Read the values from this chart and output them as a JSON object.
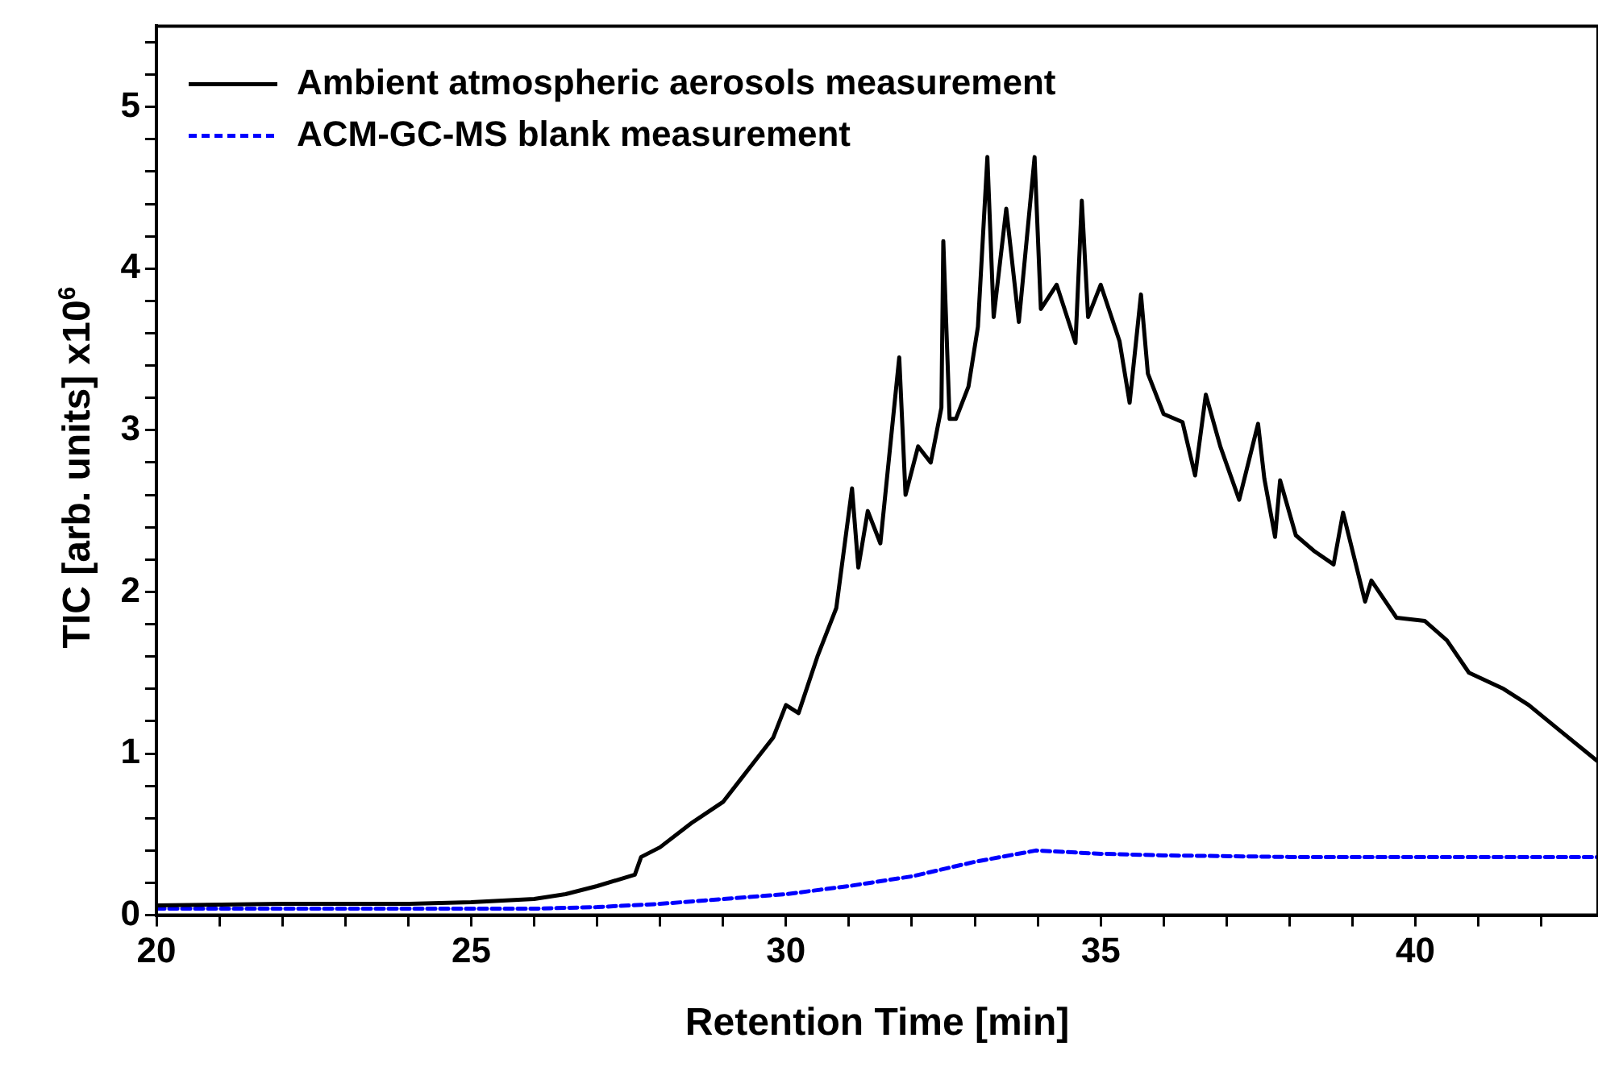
{
  "chart_data": {
    "type": "line",
    "xlabel": "Retention Time [min]",
    "ylabel": "TIC [arb. units] x10$^{6}$",
    "xlim": [
      20,
      42.9
    ],
    "ylim": [
      0,
      5.5
    ],
    "xticks": [
      20,
      {
        "value": 21,
        "label": null
      },
      {
        "value": 22,
        "label": null
      },
      {
        "value": 23,
        "label": null
      },
      {
        "value": 24,
        "label": null
      },
      25,
      {
        "value": 26,
        "label": null
      },
      {
        "value": 27,
        "label": null
      },
      {
        "value": 28,
        "label": null
      },
      {
        "value": 29,
        "label": null
      },
      30,
      {
        "value": 31,
        "label": null
      },
      {
        "value": 32,
        "label": null
      },
      {
        "value": 33,
        "label": null
      },
      {
        "value": 34,
        "label": null
      },
      35,
      {
        "value": 36,
        "label": null
      },
      {
        "value": 37,
        "label": null
      },
      {
        "value": 38,
        "label": null
      },
      {
        "value": 39,
        "label": null
      },
      40,
      {
        "value": 41,
        "label": null
      },
      {
        "value": 42,
        "label": null
      }
    ],
    "yticks": [
      0,
      {
        "value": 0.2,
        "label": null
      },
      {
        "value": 0.4,
        "label": null
      },
      {
        "value": 0.6,
        "label": null
      },
      {
        "value": 0.8,
        "label": null
      },
      1,
      {
        "value": 1.2,
        "label": null
      },
      {
        "value": 1.4,
        "label": null
      },
      {
        "value": 1.6,
        "label": null
      },
      {
        "value": 1.8,
        "label": null
      },
      2,
      {
        "value": 2.2,
        "label": null
      },
      {
        "value": 2.4,
        "label": null
      },
      {
        "value": 2.6,
        "label": null
      },
      {
        "value": 2.8,
        "label": null
      },
      3,
      {
        "value": 3.2,
        "label": null
      },
      {
        "value": 3.4,
        "label": null
      },
      {
        "value": 3.6,
        "label": null
      },
      {
        "value": 3.8,
        "label": null
      },
      4,
      {
        "value": 4.2,
        "label": null
      },
      {
        "value": 4.4,
        "label": null
      },
      {
        "value": 4.6,
        "label": null
      },
      {
        "value": 4.8,
        "label": null
      },
      5,
      {
        "value": 5.2,
        "label": null
      },
      {
        "value": 5.4,
        "label": null
      }
    ],
    "legend": "top left",
    "marker": "none",
    "series": [
      {
        "name": "Ambient atmospheric aerosols measurement",
        "color": "#000000",
        "line_style": "solid",
        "x": [
          20,
          22,
          24,
          25,
          26,
          26.5,
          27,
          27.6,
          27.7,
          28,
          28.5,
          29,
          29.3,
          29.5,
          29.8,
          30,
          30.2,
          30.5,
          30.8,
          31.05,
          31.15,
          31.3,
          31.5,
          31.8,
          31.9,
          32.1,
          32.3,
          32.47,
          32.5,
          32.6,
          32.7,
          32.9,
          33.05,
          33.2,
          33.3,
          33.5,
          33.7,
          33.95,
          34.05,
          34.3,
          34.6,
          34.7,
          34.8,
          35,
          35.3,
          35.46,
          35.64,
          35.75,
          36,
          36.3,
          36.5,
          36.67,
          36.9,
          37.2,
          37.5,
          37.6,
          37.77,
          37.85,
          38.1,
          38.4,
          38.7,
          38.85,
          39.2,
          39.3,
          39.7,
          40.15,
          40.5,
          40.85,
          41.4,
          41.8,
          42.3,
          42.9
        ],
        "values": [
          0.06,
          0.07,
          0.07,
          0.08,
          0.1,
          0.13,
          0.18,
          0.25,
          0.36,
          0.42,
          0.57,
          0.7,
          0.85,
          0.95,
          1.1,
          1.3,
          1.25,
          1.6,
          1.9,
          2.64,
          2.15,
          2.5,
          2.3,
          3.45,
          2.6,
          2.9,
          2.8,
          3.14,
          4.17,
          3.07,
          3.07,
          3.27,
          3.64,
          4.69,
          3.7,
          4.37,
          3.67,
          4.69,
          3.75,
          3.9,
          3.54,
          4.42,
          3.7,
          3.9,
          3.55,
          3.17,
          3.84,
          3.35,
          3.1,
          3.05,
          2.72,
          3.22,
          2.9,
          2.57,
          3.04,
          2.7,
          2.34,
          2.69,
          2.35,
          2.25,
          2.17,
          2.49,
          1.94,
          2.07,
          1.84,
          1.82,
          1.7,
          1.5,
          1.4,
          1.3,
          1.14,
          0.95
        ]
      },
      {
        "name": "ACM-GC-MS blank measurement",
        "color": "#0000ff",
        "line_style": "dashed",
        "x": [
          20,
          22,
          24,
          26,
          27,
          28,
          29,
          30,
          31,
          32,
          33,
          33.97,
          35,
          36,
          38,
          40,
          42.9
        ],
        "values": [
          0.04,
          0.04,
          0.04,
          0.04,
          0.05,
          0.07,
          0.1,
          0.13,
          0.18,
          0.24,
          0.33,
          0.4,
          0.38,
          0.37,
          0.36,
          0.36,
          0.36
        ]
      }
    ]
  }
}
